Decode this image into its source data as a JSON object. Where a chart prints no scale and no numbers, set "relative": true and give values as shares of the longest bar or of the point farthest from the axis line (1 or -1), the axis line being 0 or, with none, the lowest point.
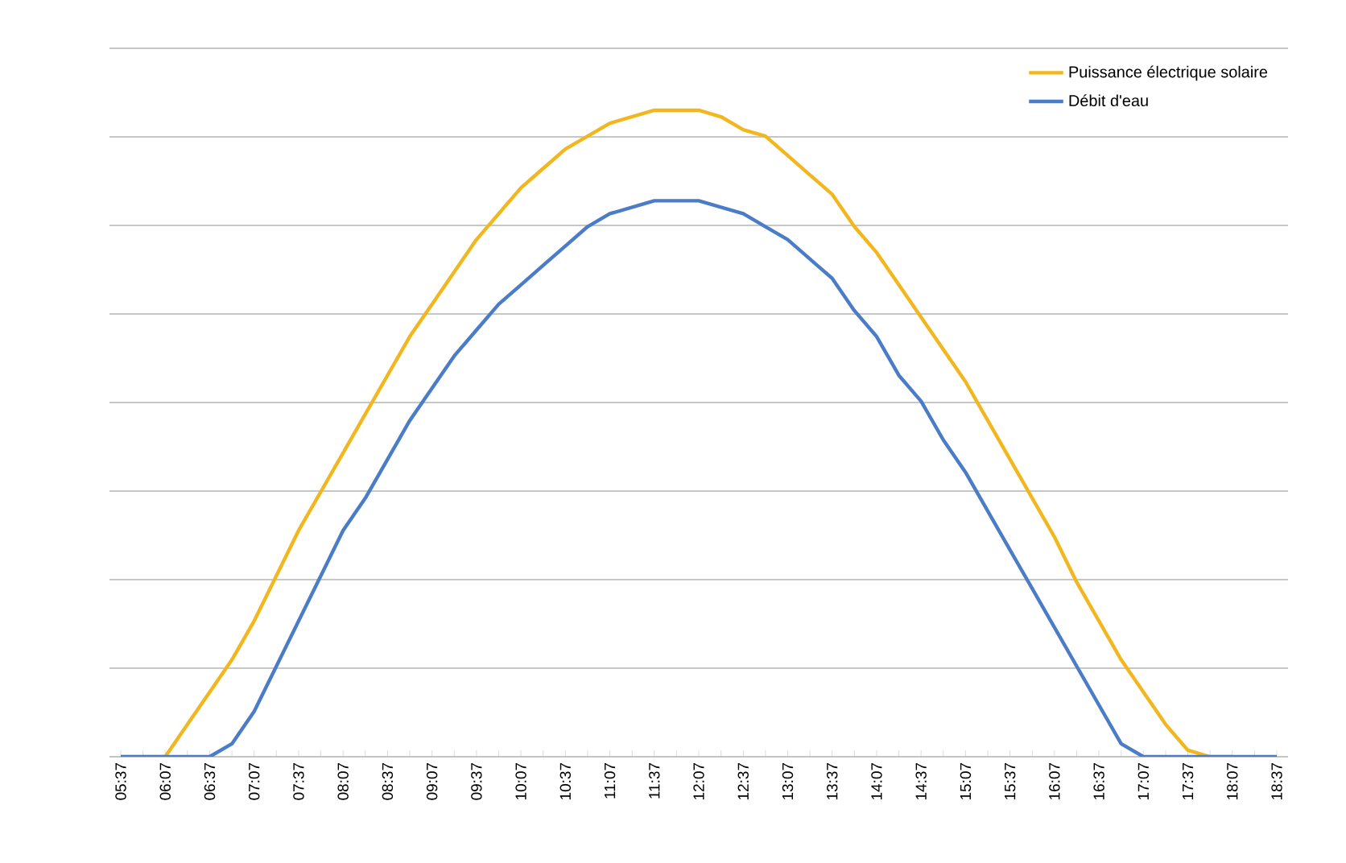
{
  "chart_data": {
    "type": "line",
    "relative": true,
    "grid": "y",
    "legend": "top right",
    "line_style": "solid",
    "marker": "none",
    "tick_labels": "x",
    "categories": [
      "05:37",
      null,
      "06:07",
      null,
      "06:37",
      null,
      "07:07",
      null,
      "07:37",
      null,
      "08:07",
      null,
      "08:37",
      null,
      "09:07",
      null,
      "09:37",
      null,
      "10:07",
      null,
      "10:37",
      null,
      "11:07",
      null,
      "11:37",
      null,
      "12:07",
      null,
      "12:37",
      null,
      "13:07",
      null,
      "13:37",
      null,
      "14:07",
      null,
      "14:37",
      null,
      "15:07",
      null,
      "15:37",
      null,
      "16:07",
      null,
      "16:37",
      null,
      "17:07",
      null,
      "17:37",
      null,
      "18:07",
      null,
      "18:37"
    ],
    "series": [
      {
        "name": "Puissance électrique solaire",
        "color": "#f2b71e",
        "values": [
          0,
          0,
          0,
          0.05,
          0.1,
          0.15,
          0.21,
          0.28,
          0.35,
          0.41,
          0.47,
          0.53,
          0.59,
          0.65,
          0.7,
          0.75,
          0.8,
          0.84,
          0.88,
          0.91,
          0.94,
          0.96,
          0.98,
          0.99,
          1.0,
          1.0,
          1.0,
          0.99,
          0.97,
          0.96,
          0.93,
          0.9,
          0.87,
          0.82,
          0.78,
          0.73,
          0.68,
          0.63,
          0.58,
          0.52,
          0.46,
          0.4,
          0.34,
          0.27,
          0.21,
          0.15,
          0.1,
          0.05,
          0.01,
          0,
          0,
          null,
          null
        ]
      },
      {
        "name": "Débit d'eau",
        "color": "#4a7cc7",
        "values": [
          0,
          0,
          0,
          0,
          0,
          0.02,
          0.07,
          0.14,
          0.21,
          0.28,
          0.35,
          0.4,
          0.46,
          0.52,
          0.57,
          0.62,
          0.66,
          0.7,
          0.73,
          0.76,
          0.79,
          0.82,
          0.84,
          0.85,
          0.86,
          0.86,
          0.86,
          0.85,
          0.84,
          0.82,
          0.8,
          0.77,
          0.74,
          0.69,
          0.65,
          0.59,
          0.55,
          0.49,
          0.44,
          0.38,
          0.32,
          0.26,
          0.2,
          0.14,
          0.08,
          0.02,
          0,
          0,
          0,
          0,
          0,
          0,
          0
        ]
      }
    ]
  }
}
